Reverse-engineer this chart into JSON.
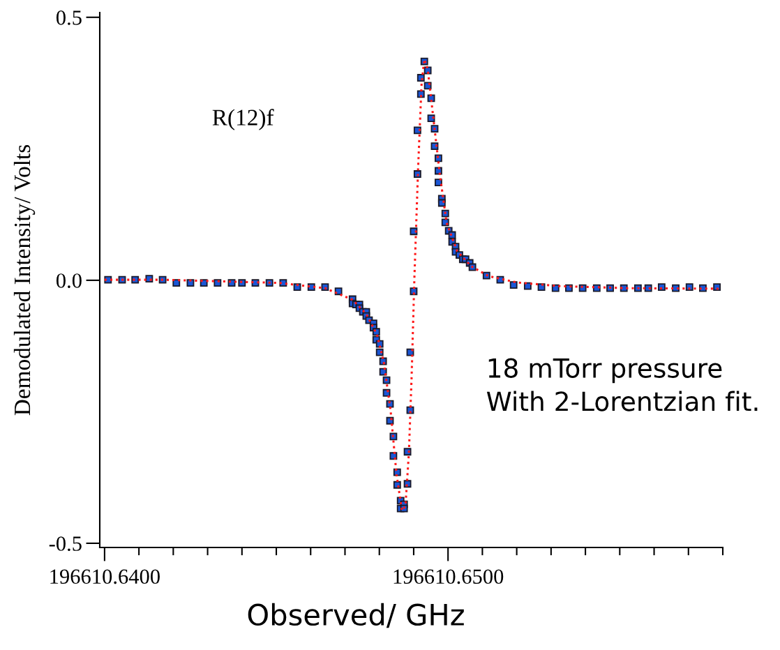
{
  "chart_data": {
    "type": "scatter",
    "xlabel": "Observed/ GHz",
    "ylabel": "Demodulated Intensity/ Volts",
    "annotations": [
      "R(12)f",
      "18 mTorr pressure\nWith 2-Lorentzian fit."
    ],
    "xlim": [
      196610.63986,
      196610.658
    ],
    "ylim": [
      -0.508,
      0.509
    ],
    "xticks": [
      {
        "value": 196610.64,
        "label": "196610.6400"
      },
      {
        "value": 196610.641,
        "label": null
      },
      {
        "value": 196610.642,
        "label": null
      },
      {
        "value": 196610.643,
        "label": null
      },
      {
        "value": 196610.644,
        "label": null
      },
      {
        "value": 196610.645,
        "label": null
      },
      {
        "value": 196610.646,
        "label": null
      },
      {
        "value": 196610.647,
        "label": null
      },
      {
        "value": 196610.648,
        "label": null
      },
      {
        "value": 196610.649,
        "label": null
      },
      {
        "value": 196610.65,
        "label": "196610.6500"
      },
      {
        "value": 196610.651,
        "label": null
      },
      {
        "value": 196610.652,
        "label": null
      },
      {
        "value": 196610.653,
        "label": null
      },
      {
        "value": 196610.654,
        "label": null
      },
      {
        "value": 196610.655,
        "label": null
      },
      {
        "value": 196610.656,
        "label": null
      },
      {
        "value": 196610.657,
        "label": null
      },
      {
        "value": 196610.658,
        "label": null
      }
    ],
    "yticks": [
      {
        "value": -0.5,
        "label": "-0.5"
      },
      {
        "value": 0,
        "label": "0.0"
      },
      0.5
    ],
    "grid": false,
    "legend": false,
    "series": [
      {
        "color": "#1a56d6",
        "marker": "square",
        "x": [
          196610.6401,
          196610.64051,
          196610.64089,
          196610.6413,
          196610.64169,
          196610.64209,
          196610.6425,
          196610.64289,
          196610.64329,
          196610.6437,
          196610.644,
          196610.64439,
          196610.6448,
          196610.6452,
          196610.64561,
          196610.64602,
          196610.64642,
          196610.64681,
          196610.64722,
          196610.64722,
          196610.64732,
          196610.64742,
          196610.64742,
          196610.64752,
          196610.64762,
          196610.64762,
          196610.6477,
          196610.64783,
          196610.64783,
          196610.64791,
          196610.64791,
          196610.64801,
          196610.64801,
          196610.64811,
          196610.64811,
          196610.64821,
          196610.64821,
          196610.64831,
          196610.64831,
          196610.64841,
          196610.64841,
          196610.64852,
          196610.64852,
          196610.64862,
          196610.64862,
          196610.64872,
          196610.64872,
          196610.64882,
          196610.64882,
          196610.6489,
          196610.6489,
          196610.649,
          196610.649,
          196610.64911,
          196610.64911,
          196610.64921,
          196610.64921,
          196610.64931,
          196610.64941,
          196610.64941,
          196610.64951,
          196610.64951,
          196610.64961,
          196610.64961,
          196610.64972,
          196610.64972,
          196610.64972,
          196610.64982,
          196610.64982,
          196610.64992,
          196610.64992,
          196610.65002,
          196610.65012,
          196610.65012,
          196610.65022,
          196610.65022,
          196610.65033,
          196610.65043,
          196610.65051,
          196610.65063,
          196610.65071,
          196610.65112,
          196610.65152,
          196610.65191,
          196610.65232,
          196610.65272,
          196610.65313,
          196610.65352,
          196610.65392,
          196610.65433,
          196610.65472,
          196610.65512,
          196610.65553,
          196610.65583,
          196610.65622,
          196610.65663,
          196610.65703,
          196610.65742,
          196610.65783
        ],
        "values": [
          0.001,
          0.001,
          0.001,
          0.003,
          0.001,
          -0.005,
          -0.005,
          -0.005,
          -0.005,
          -0.005,
          -0.005,
          -0.005,
          -0.005,
          -0.005,
          -0.013,
          -0.013,
          -0.013,
          -0.021,
          -0.036,
          -0.044,
          -0.046,
          -0.046,
          -0.053,
          -0.06,
          -0.06,
          -0.068,
          -0.076,
          -0.082,
          -0.09,
          -0.098,
          -0.113,
          -0.121,
          -0.137,
          -0.154,
          -0.174,
          -0.19,
          -0.214,
          -0.235,
          -0.267,
          -0.297,
          -0.334,
          -0.365,
          -0.389,
          -0.419,
          -0.434,
          -0.426,
          -0.434,
          -0.387,
          -0.326,
          -0.247,
          -0.137,
          -0.021,
          0.093,
          0.202,
          0.285,
          0.354,
          0.385,
          0.416,
          0.399,
          0.37,
          0.346,
          0.308,
          0.288,
          0.255,
          0.232,
          0.208,
          0.186,
          0.155,
          0.147,
          0.127,
          0.11,
          0.094,
          0.086,
          0.073,
          0.064,
          0.054,
          0.048,
          0.04,
          0.04,
          0.033,
          0.025,
          0.009,
          0.001,
          -0.009,
          -0.011,
          -0.013,
          -0.015,
          -0.015,
          -0.015,
          -0.015,
          -0.015,
          -0.015,
          -0.015,
          -0.015,
          -0.013,
          -0.015,
          -0.013,
          -0.015,
          -0.013
        ]
      },
      {
        "type": "line",
        "color": "#ff1a1a",
        "line_style": "dotted",
        "marker": "none",
        "x": [
          196610.64,
          196610.64169,
          196610.64508,
          196610.64642,
          196610.64722,
          196610.64762,
          196610.64793,
          196610.64813,
          196610.64833,
          196610.6485,
          196610.64866,
          196610.64876,
          196610.64886,
          196610.64894,
          196610.64902,
          196610.64913,
          196610.64923,
          196610.64931,
          196610.64941,
          196610.64955,
          196610.64976,
          196610.64996,
          196610.65026,
          196610.65067,
          196610.65118,
          196610.65199,
          196610.65321,
          196610.65524,
          196610.65789
        ],
        "values": [
          0.001,
          0.001,
          -0.005,
          -0.015,
          -0.037,
          -0.064,
          -0.103,
          -0.156,
          -0.249,
          -0.369,
          -0.438,
          -0.429,
          -0.329,
          -0.183,
          0.003,
          0.215,
          0.374,
          0.42,
          0.401,
          0.321,
          0.202,
          0.109,
          0.056,
          0.027,
          0.008,
          -0.004,
          -0.011,
          -0.015,
          -0.016
        ]
      }
    ]
  }
}
